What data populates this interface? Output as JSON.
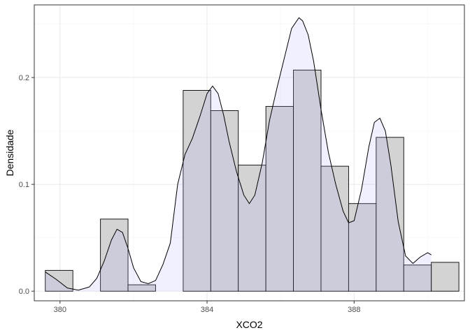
{
  "chart_data": {
    "type": "bar",
    "xlabel": "XCO2",
    "ylabel": "Densidade",
    "xlim": [
      379.3,
      391.0
    ],
    "ylim": [
      -0.009,
      0.268
    ],
    "x_ticks": [
      380,
      384,
      388
    ],
    "x_tick_labels": [
      "380",
      "384",
      "388"
    ],
    "y_ticks": [
      0.0,
      0.1,
      0.2
    ],
    "y_tick_labels": [
      "0.0",
      "0.1",
      "0.2"
    ],
    "grid": true,
    "histogram": {
      "bins": [
        {
          "x0": 379.6,
          "x1": 380.35,
          "density": 0.0195
        },
        {
          "x0": 380.35,
          "x1": 381.1,
          "density": 0.0
        },
        {
          "x0": 381.1,
          "x1": 381.85,
          "density": 0.0675
        },
        {
          "x0": 381.85,
          "x1": 382.6,
          "density": 0.006
        },
        {
          "x0": 382.6,
          "x1": 383.35,
          "density": 0.0
        },
        {
          "x0": 383.35,
          "x1": 384.1,
          "density": 0.188
        },
        {
          "x0": 384.1,
          "x1": 384.85,
          "density": 0.169
        },
        {
          "x0": 384.85,
          "x1": 385.6,
          "density": 0.118
        },
        {
          "x0": 385.6,
          "x1": 386.35,
          "density": 0.173
        },
        {
          "x0": 386.35,
          "x1": 387.1,
          "density": 0.207
        },
        {
          "x0": 387.1,
          "x1": 387.85,
          "density": 0.117
        },
        {
          "x0": 387.85,
          "x1": 388.6,
          "density": 0.082
        },
        {
          "x0": 388.6,
          "x1": 389.35,
          "density": 0.144
        },
        {
          "x0": 389.35,
          "x1": 390.1,
          "density": 0.0245
        },
        {
          "x0": 390.1,
          "x1": 390.85,
          "density": 0.027
        }
      ]
    },
    "density_curve": {
      "x": [
        379.6,
        379.9,
        380.2,
        380.5,
        380.8,
        381.0,
        381.2,
        381.4,
        381.55,
        381.7,
        381.85,
        382.0,
        382.2,
        382.4,
        382.6,
        382.8,
        383.0,
        383.2,
        383.4,
        383.6,
        383.8,
        384.0,
        384.15,
        384.3,
        384.45,
        384.6,
        384.8,
        385.0,
        385.15,
        385.3,
        385.5,
        385.7,
        385.9,
        386.1,
        386.3,
        386.5,
        386.6,
        386.75,
        386.9,
        387.1,
        387.3,
        387.5,
        387.7,
        387.85,
        388.0,
        388.2,
        388.4,
        388.55,
        388.7,
        388.85,
        389.0,
        389.2,
        389.4,
        389.6,
        389.8,
        390.0,
        390.1
      ],
      "y": [
        0.018,
        0.011,
        0.003,
        0.001,
        0.004,
        0.012,
        0.028,
        0.048,
        0.058,
        0.055,
        0.04,
        0.022,
        0.009,
        0.007,
        0.01,
        0.025,
        0.045,
        0.1,
        0.128,
        0.143,
        0.163,
        0.185,
        0.192,
        0.185,
        0.165,
        0.14,
        0.112,
        0.09,
        0.082,
        0.09,
        0.12,
        0.16,
        0.19,
        0.218,
        0.246,
        0.256,
        0.253,
        0.24,
        0.215,
        0.17,
        0.13,
        0.1,
        0.075,
        0.064,
        0.066,
        0.095,
        0.135,
        0.158,
        0.162,
        0.15,
        0.118,
        0.065,
        0.033,
        0.026,
        0.032,
        0.036,
        0.034
      ]
    },
    "colors": {
      "bar_fill": "#d3d3d3",
      "bar_stroke": "#000000",
      "density_fill": "#aaaaff",
      "density_fill_opacity": 0.18,
      "density_line": "#000000",
      "grid_major": "#ebebeb",
      "grid_minor": "#f5f5f5",
      "panel_border": "#333333"
    }
  }
}
